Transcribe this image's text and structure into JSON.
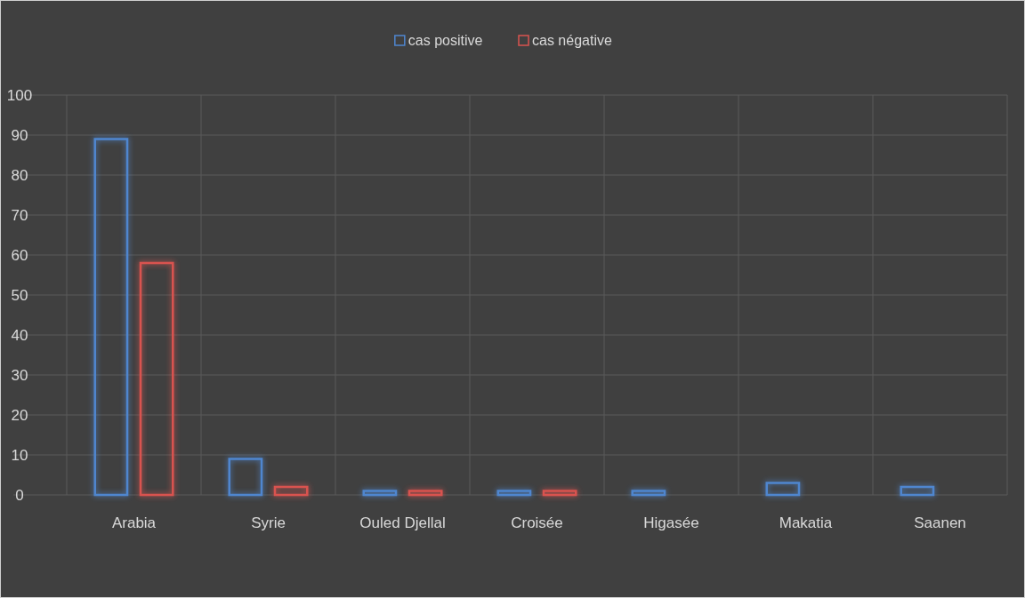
{
  "chart_data": {
    "type": "bar",
    "categories": [
      "Arabia",
      "Syrie",
      "Ouled Djellal",
      "Croisée",
      "Higasée",
      "Makatia",
      "Saanen"
    ],
    "series": [
      {
        "name": "cas positive",
        "color": "#4f86cf",
        "values": [
          89,
          9,
          1,
          1,
          1,
          3,
          2
        ]
      },
      {
        "name": "cas négative",
        "color": "#d9534f",
        "values": [
          58,
          2,
          1,
          1,
          null,
          null,
          null
        ]
      }
    ],
    "ylim": [
      0,
      100
    ],
    "yticks": [
      0,
      10,
      20,
      30,
      40,
      50,
      60,
      70,
      80,
      90,
      100
    ],
    "grid": true,
    "legend": "top"
  }
}
